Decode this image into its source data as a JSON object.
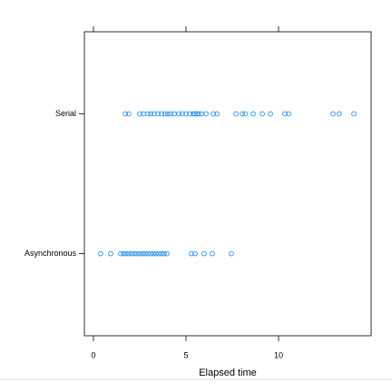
{
  "chart_data": {
    "type": "strip",
    "xlabel": "Elapsed time",
    "categories": [
      "Asynchronous",
      "Serial"
    ],
    "values": [
      [
        0.39,
        0.93,
        1.47,
        1.62,
        1.76,
        1.91,
        2.06,
        2.21,
        2.35,
        2.5,
        2.65,
        2.79,
        2.94,
        3.09,
        3.24,
        3.38,
        3.53,
        3.68,
        3.82,
        3.97,
        5.29,
        5.49,
        5.98,
        6.42,
        7.45
      ],
      [
        1.72,
        1.91,
        2.5,
        2.7,
        2.94,
        3.09,
        3.28,
        3.48,
        3.68,
        3.87,
        4.02,
        4.17,
        4.36,
        4.61,
        4.8,
        5.0,
        5.2,
        5.39,
        5.49,
        5.59,
        5.69,
        5.83,
        6.08,
        6.47,
        6.67,
        7.7,
        8.04,
        8.19,
        8.63,
        9.12,
        9.56,
        10.34,
        10.54,
        12.94,
        13.28,
        14.07
      ]
    ],
    "color": "#2a8fe6",
    "xlim": [
      -0.49,
      15.0
    ],
    "xticks": [
      0,
      5,
      10
    ]
  }
}
